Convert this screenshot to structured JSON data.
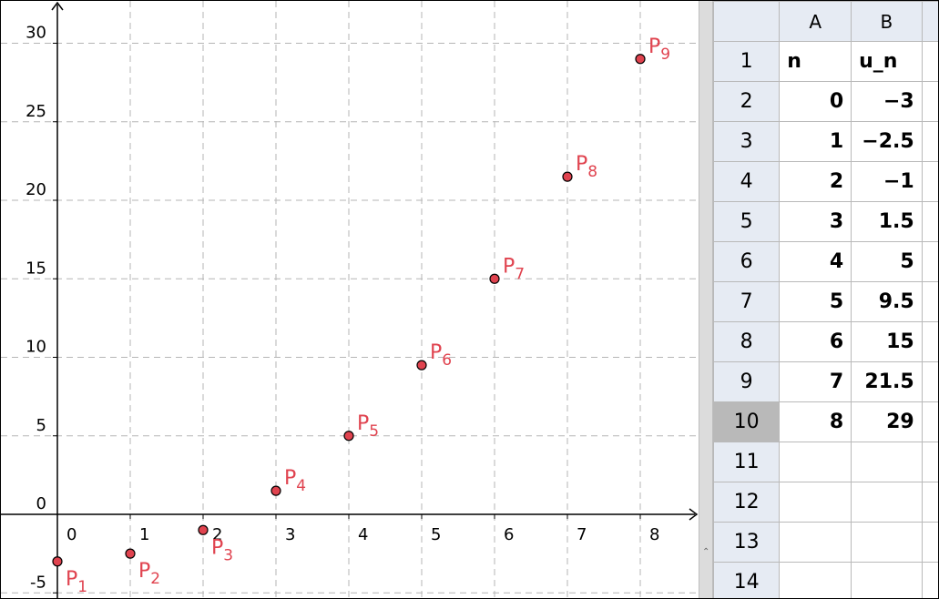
{
  "graphics": {
    "x_ticks": [
      "0",
      "1",
      "2",
      "3",
      "4",
      "5",
      "6",
      "7",
      "8"
    ],
    "y_ticks": [
      "-5",
      "0",
      "5",
      "10",
      "15",
      "20",
      "25",
      "30"
    ],
    "point_color": "#e0434f",
    "grid_color": "#b5b5b5"
  },
  "chart_data": {
    "type": "scatter",
    "x": [
      0,
      1,
      2,
      3,
      4,
      5,
      6,
      7,
      8
    ],
    "y": [
      -3,
      -2.5,
      -1,
      1.5,
      5,
      9.5,
      15,
      21.5,
      29
    ],
    "point_labels": [
      "P",
      "P",
      "P",
      "P",
      "P",
      "P",
      "P",
      "P",
      "P"
    ],
    "point_subscripts": [
      "1",
      "2",
      "3",
      "4",
      "5",
      "6",
      "7",
      "8",
      "9"
    ],
    "xlim": [
      -0.75,
      8.8
    ],
    "ylim": [
      -5.5,
      32.7
    ],
    "grid": true,
    "x_tick_step": 1,
    "y_tick_step": 5
  },
  "spreadsheet": {
    "columns": [
      "A",
      "B"
    ],
    "rows": [
      {
        "row": "1",
        "a": "n",
        "b": "u_n"
      },
      {
        "row": "2",
        "a": "0",
        "b": "−3"
      },
      {
        "row": "3",
        "a": "1",
        "b": "−2.5"
      },
      {
        "row": "4",
        "a": "2",
        "b": "−1"
      },
      {
        "row": "5",
        "a": "3",
        "b": "1.5"
      },
      {
        "row": "6",
        "a": "4",
        "b": "5"
      },
      {
        "row": "7",
        "a": "5",
        "b": "9.5"
      },
      {
        "row": "8",
        "a": "6",
        "b": "15"
      },
      {
        "row": "9",
        "a": "7",
        "b": "21.5"
      },
      {
        "row": "10",
        "a": "8",
        "b": "29"
      },
      {
        "row": "11",
        "a": "",
        "b": ""
      },
      {
        "row": "12",
        "a": "",
        "b": ""
      },
      {
        "row": "13",
        "a": "",
        "b": ""
      },
      {
        "row": "14",
        "a": "",
        "b": ""
      }
    ],
    "selected_row": "10",
    "header_bg": "#e6ebf3",
    "selected_bg": "#b9b9b9"
  },
  "splitter": {
    "grip_symbol": "⌃"
  }
}
